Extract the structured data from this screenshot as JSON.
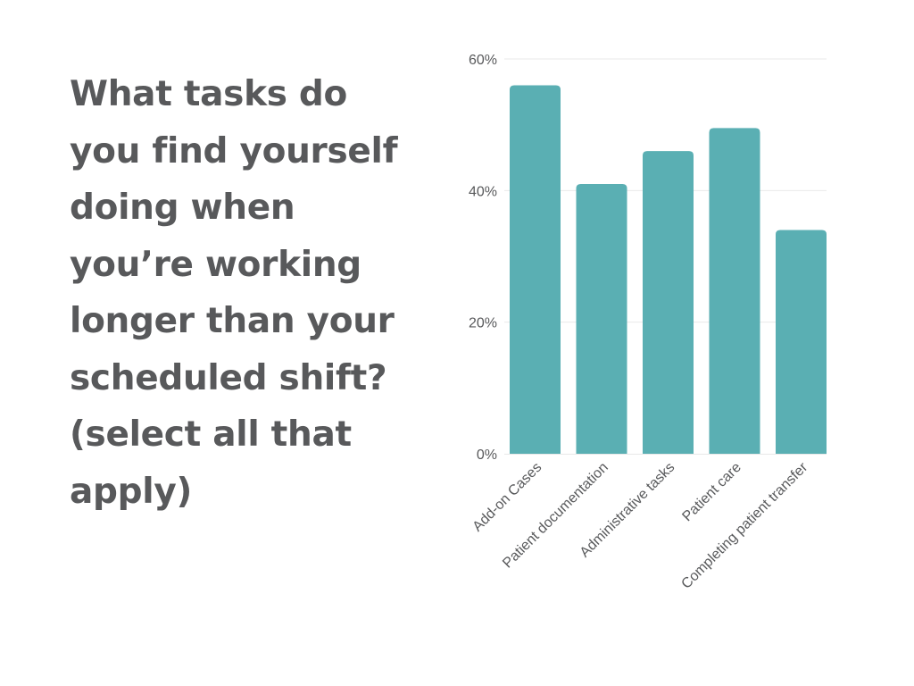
{
  "question": "What tasks do you find yourself doing when you’re working longer than your scheduled shift? (select all that apply)",
  "colors": {
    "bar": "#5aafb3",
    "text": "#58595b",
    "grid": "#e9e9e9"
  },
  "chart_data": {
    "type": "bar",
    "categories": [
      "Add-on Cases",
      "Patient documentation",
      "Administrative tasks",
      "Patient care",
      "Completing patient transfer"
    ],
    "values": [
      56,
      41,
      46,
      49.5,
      34
    ],
    "ylim": [
      0,
      60
    ],
    "yticks": [
      0,
      20,
      40,
      60
    ],
    "ytick_labels": [
      "0%",
      "20%",
      "40%",
      "60%"
    ],
    "grid": true
  }
}
